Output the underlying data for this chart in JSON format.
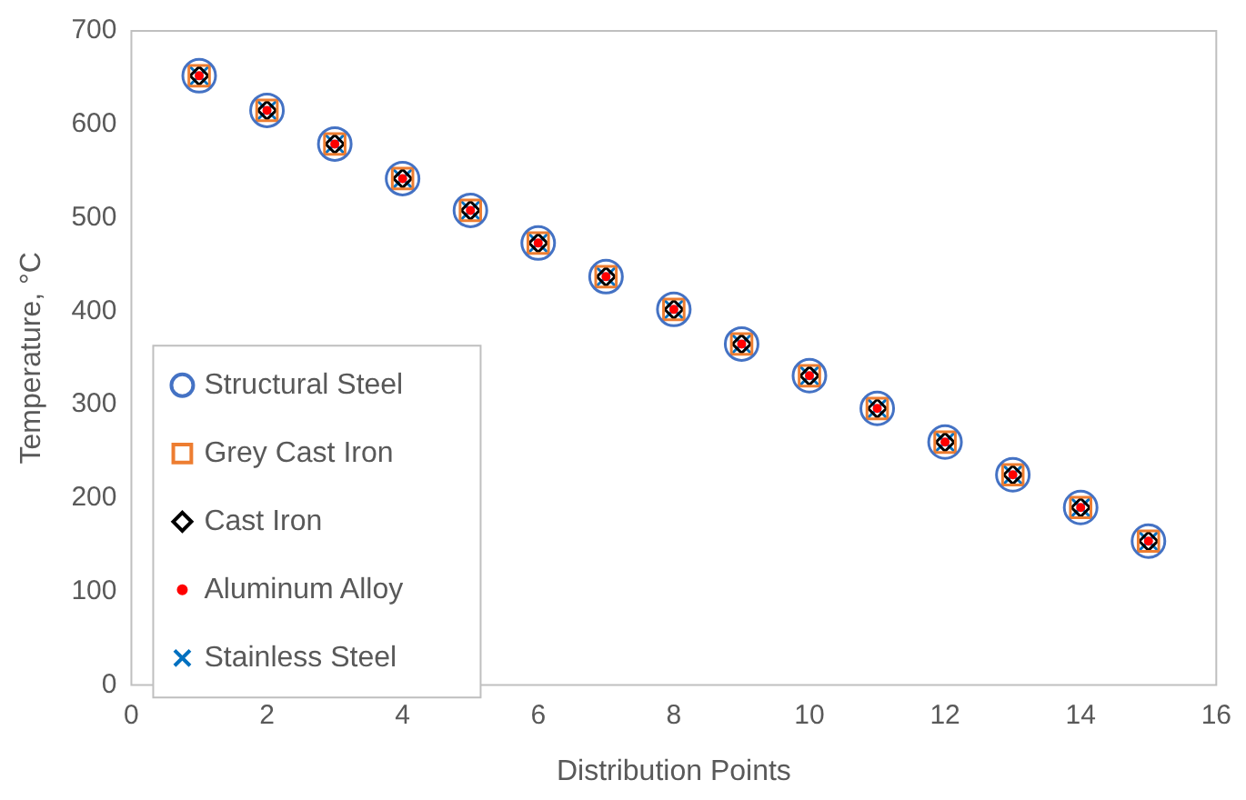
{
  "chart_data": {
    "type": "scatter",
    "xlabel": "Distribution Points",
    "ylabel": "Temperature, °C",
    "x": [
      1,
      2,
      3,
      4,
      5,
      6,
      7,
      8,
      9,
      10,
      11,
      12,
      13,
      14,
      15
    ],
    "xlim": [
      0,
      16
    ],
    "xticks": [
      0,
      2,
      4,
      6,
      8,
      10,
      12,
      14,
      16
    ],
    "ylim": [
      0,
      700
    ],
    "yticks": [
      0,
      100,
      200,
      300,
      400,
      500,
      600,
      700
    ],
    "grid": false,
    "legend": "left",
    "series": [
      {
        "name": "Structural Steel",
        "color": "#4472c4",
        "marker": "circle",
        "values": [
          652,
          615,
          579,
          542,
          508,
          473,
          437,
          402,
          365,
          331,
          296,
          260,
          225,
          190,
          154
        ]
      },
      {
        "name": "Grey Cast Iron",
        "color": "#ed7d31",
        "marker": "square",
        "values": [
          652,
          615,
          579,
          542,
          508,
          473,
          437,
          402,
          365,
          331,
          296,
          260,
          225,
          190,
          154
        ]
      },
      {
        "name": "Cast Iron",
        "color": "#000000",
        "marker": "diamond",
        "values": [
          652,
          615,
          579,
          542,
          508,
          473,
          437,
          402,
          365,
          331,
          296,
          260,
          225,
          190,
          154
        ]
      },
      {
        "name": "Aluminum Alloy",
        "color": "#ff0000",
        "marker": "circle",
        "values": [
          652,
          615,
          579,
          542,
          508,
          473,
          437,
          402,
          365,
          331,
          296,
          260,
          225,
          190,
          154
        ]
      },
      {
        "name": "Stainless Steel",
        "color": "#0070c0",
        "marker": "cross",
        "values": [
          652,
          615,
          579,
          542,
          508,
          473,
          437,
          402,
          365,
          331,
          296,
          260,
          225,
          190,
          154
        ]
      }
    ]
  }
}
